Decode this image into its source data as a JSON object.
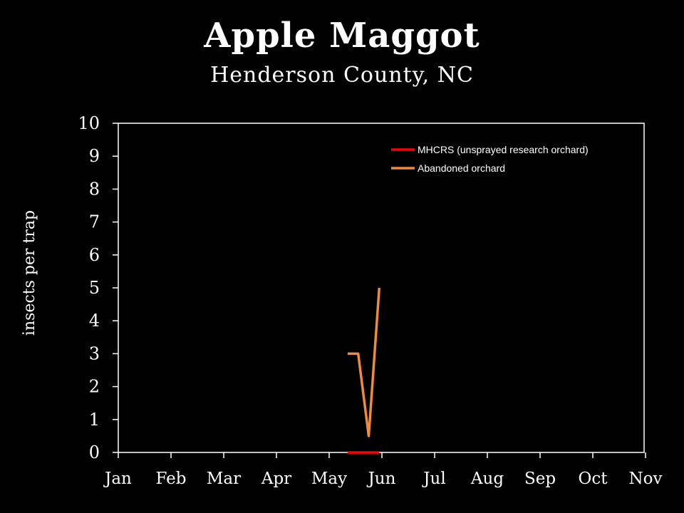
{
  "chart_data": {
    "type": "line",
    "title": "Apple Maggot",
    "subtitle": "Henderson County, NC",
    "ylabel": "insects per trap",
    "xlabel": "",
    "ylim": [
      0,
      10
    ],
    "yticks": [
      "0",
      "1",
      "2",
      "3",
      "4",
      "5",
      "6",
      "7",
      "8",
      "9",
      "10"
    ],
    "xticks": [
      "Jan",
      "Feb",
      "Mar",
      "Apr",
      "May",
      "Jun",
      "Jul",
      "Aug",
      "Sep",
      "Oct",
      "Nov"
    ],
    "grid": false,
    "legend_position": "top-right",
    "series": [
      {
        "name": "MHCRS (unsprayed research orchard)",
        "color": "#ff0000",
        "points": [
          [
            4.35,
            0
          ],
          [
            4.55,
            0
          ],
          [
            4.75,
            0
          ],
          [
            4.95,
            0
          ]
        ]
      },
      {
        "name": "Abandoned orchard",
        "color": "#f08a3c",
        "points": [
          [
            4.35,
            3
          ],
          [
            4.55,
            3
          ],
          [
            4.75,
            0.5
          ],
          [
            4.95,
            5
          ]
        ]
      }
    ]
  }
}
